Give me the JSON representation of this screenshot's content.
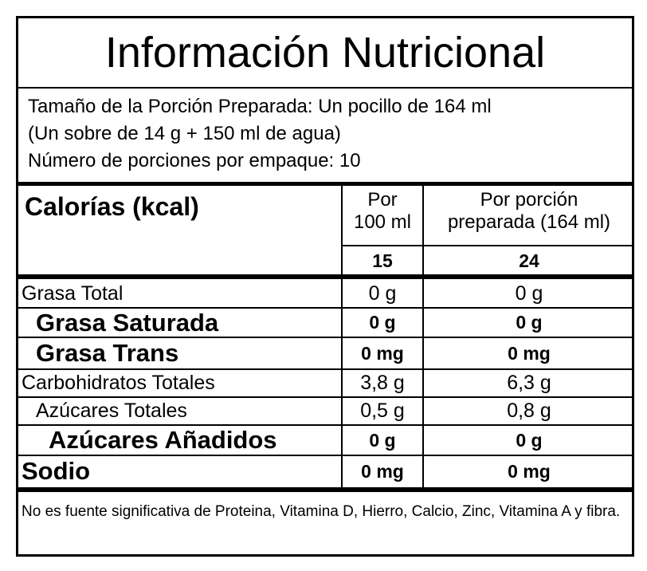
{
  "header": {
    "title": "Información Nutricional"
  },
  "serving": {
    "lines": [
      "Tamaño de la Porción Preparada: Un pocillo de 164 ml",
      "(Un sobre de 14 g + 150 ml de agua)",
      "Número de porciones por empaque: 10"
    ]
  },
  "calories": {
    "label": "Calorías (kcal)",
    "columns": [
      "Por 100 ml",
      "Por porción preparada (164 ml)"
    ],
    "values": [
      "15",
      "24"
    ]
  },
  "nutrients": [
    {
      "name": "Grasa Total",
      "per_100ml": "0 g",
      "per_serving": "0 g"
    },
    {
      "name": "Grasa Saturada",
      "per_100ml": "0 g",
      "per_serving": "0 g"
    },
    {
      "name": "Grasa Trans",
      "per_100ml": "0 mg",
      "per_serving": "0 mg"
    },
    {
      "name": "Carbohidratos Totales",
      "per_100ml": "3,8 g",
      "per_serving": "6,3 g"
    },
    {
      "name": "Azúcares Totales",
      "per_100ml": "0,5 g",
      "per_serving": "0,8 g"
    },
    {
      "name": "Azúcares Añadidos",
      "per_100ml": "0 g",
      "per_serving": "0 g"
    },
    {
      "name": "Sodio",
      "per_100ml": "0 mg",
      "per_serving": "0 mg"
    }
  ],
  "footnote": "No es fuente significativa de Proteina, Vitamina D, Hierro, Calcio, Zinc, Vitamina A y fibra."
}
